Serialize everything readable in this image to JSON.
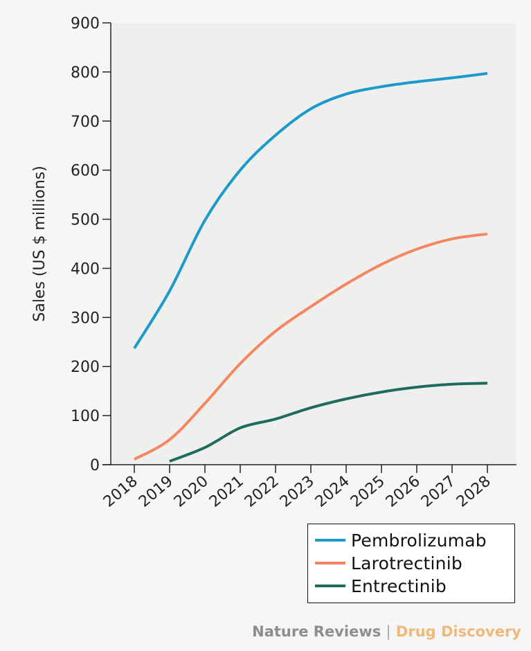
{
  "chart_data": {
    "type": "line",
    "title": "",
    "xlabel": "",
    "ylabel": "Sales (US $ millions)",
    "ylim": [
      0,
      900
    ],
    "yticks": [
      "0",
      "100",
      "200",
      "300",
      "400",
      "500",
      "600",
      "700",
      "800",
      "900"
    ],
    "categories": [
      "2018",
      "2019",
      "2020",
      "2021",
      "2022",
      "2023",
      "2024",
      "2025",
      "2026",
      "2027",
      "2028"
    ],
    "grid": false,
    "legend_position": "bottom-right",
    "series": [
      {
        "name": "Pembrolizumab",
        "color": "#1a9bcb",
        "values": [
          237,
          354,
          498,
          600,
          671,
          725,
          755,
          770,
          780,
          788,
          797
        ]
      },
      {
        "name": "Larotrectinib",
        "color": "#f4875f",
        "values": [
          11,
          51,
          125,
          206,
          272,
          322,
          368,
          408,
          439,
          460,
          470
        ]
      },
      {
        "name": "Entrectinib",
        "color": "#1f6b5e",
        "values": [
          null,
          7,
          35,
          75,
          93,
          116,
          134,
          148,
          158,
          164,
          166
        ]
      }
    ]
  },
  "footer": {
    "publisher": "Nature Reviews",
    "separator": "|",
    "journal": "Drug Discovery"
  }
}
